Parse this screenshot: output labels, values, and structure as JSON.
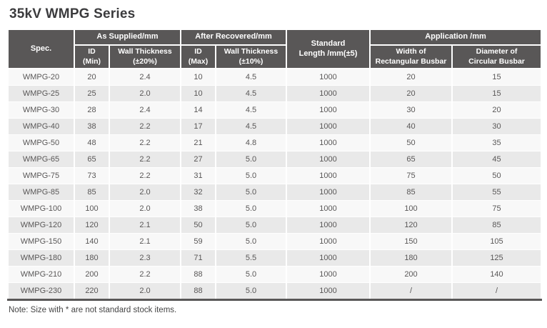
{
  "title": "35kV WMPG Series",
  "note": "Note: Size with * are not standard stock items.",
  "colors": {
    "header_bg": "#595757",
    "header_text": "#ffffff",
    "row_light": "#f8f8f8",
    "row_dark": "#e9e9e9",
    "cell_text": "#595757",
    "title_text": "#3b3b3d",
    "bottom_border": "#595757"
  },
  "table": {
    "header": {
      "spec": "Spec.",
      "groups": {
        "as_supplied": "As Supplied/mm",
        "after_recovered": "After Recovered/mm",
        "standard_length": "Standard\nLength /mm(±5)",
        "application": "Application /mm"
      },
      "sub": {
        "id_min": "ID\n(Min)",
        "wall_20": "Wall Thickness\n(±20%)",
        "id_max": "ID\n(Max)",
        "wall_10": "Wall Thickness\n(±10%)",
        "width_rect": "Width of\nRectangular Busbar",
        "dia_circ": "Diameter of\nCircular Busbar"
      }
    },
    "rows": [
      [
        "WMPG-20",
        "20",
        "2.4",
        "10",
        "4.5",
        "1000",
        "20",
        "15"
      ],
      [
        "WMPG-25",
        "25",
        "2.0",
        "10",
        "4.5",
        "1000",
        "20",
        "15"
      ],
      [
        "WMPG-30",
        "28",
        "2.4",
        "14",
        "4.5",
        "1000",
        "30",
        "20"
      ],
      [
        "WMPG-40",
        "38",
        "2.2",
        "17",
        "4.5",
        "1000",
        "40",
        "30"
      ],
      [
        "WMPG-50",
        "48",
        "2.2",
        "21",
        "4.8",
        "1000",
        "50",
        "35"
      ],
      [
        "WMPG-65",
        "65",
        "2.2",
        "27",
        "5.0",
        "1000",
        "65",
        "45"
      ],
      [
        "WMPG-75",
        "73",
        "2.2",
        "31",
        "5.0",
        "1000",
        "75",
        "50"
      ],
      [
        "WMPG-85",
        "85",
        "2.0",
        "32",
        "5.0",
        "1000",
        "85",
        "55"
      ],
      [
        "WMPG-100",
        "100",
        "2.0",
        "38",
        "5.0",
        "1000",
        "100",
        "75"
      ],
      [
        "WMPG-120",
        "120",
        "2.1",
        "50",
        "5.0",
        "1000",
        "120",
        "85"
      ],
      [
        "WMPG-150",
        "140",
        "2.1",
        "59",
        "5.0",
        "1000",
        "150",
        "105"
      ],
      [
        "WMPG-180",
        "180",
        "2.3",
        "71",
        "5.5",
        "1000",
        "180",
        "125"
      ],
      [
        "WMPG-210",
        "200",
        "2.2",
        "88",
        "5.0",
        "1000",
        "200",
        "140"
      ],
      [
        "WMPG-230",
        "220",
        "2.0",
        "88",
        "5.0",
        "1000",
        "/",
        "/"
      ]
    ]
  }
}
